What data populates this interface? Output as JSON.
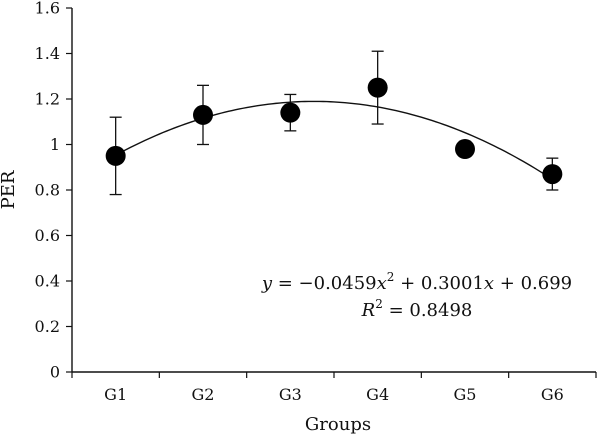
{
  "chart_data": {
    "type": "scatter",
    "title": "",
    "xlabel": "Groups",
    "ylabel": "PER",
    "categories": [
      "G1",
      "G2",
      "G3",
      "G4",
      "G5",
      "G6"
    ],
    "ylim": [
      0,
      1.6
    ],
    "yticks": [
      "0",
      "0.2",
      "0.4",
      "0.6",
      "0.8",
      "1",
      "1.2",
      "1.4",
      "1.6"
    ],
    "grid": false,
    "series": [
      {
        "values": [
          0.95,
          1.13,
          1.14,
          1.25,
          0.98,
          0.87
        ],
        "error": [
          0.17,
          0.13,
          0.08,
          0.16,
          0.02,
          0.07
        ]
      }
    ],
    "trendline": {
      "type": "polynomial",
      "coefficients": {
        "a": -0.0459,
        "b": 0.3001,
        "c": 0.699
      }
    },
    "annotation": {
      "equation_prefix": "y",
      "equation_mid": " = −0.0459",
      "x_var": "x",
      "exp": "2",
      "equation_rest": " + 0.3001",
      "equation_tail": " + 0.699",
      "r2_prefix": "R",
      "r2_value": " = 0.8498"
    }
  }
}
